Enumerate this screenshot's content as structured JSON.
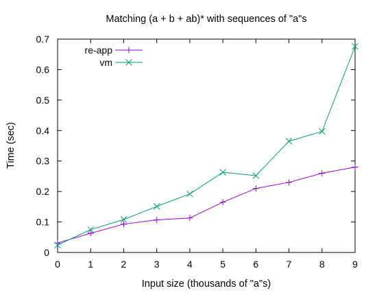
{
  "chart_data": {
    "type": "line",
    "title": "Matching (a + b + ab)* with sequences of \"a\"s",
    "xlabel": "Input size (thousands of \"a\"s)",
    "ylabel": "Time (sec)",
    "xlim": [
      0,
      9
    ],
    "ylim": [
      0,
      0.7
    ],
    "x_ticks": [
      "0",
      "1",
      "2",
      "3",
      "4",
      "5",
      "6",
      "7",
      "8",
      "9"
    ],
    "y_ticks": [
      "0",
      "0.1",
      "0.2",
      "0.3",
      "0.4",
      "0.5",
      "0.6",
      "0.7"
    ],
    "x": [
      0,
      1,
      2,
      3,
      4,
      5,
      6,
      7,
      8,
      9
    ],
    "grid": false,
    "legend_position": "top-left",
    "series": [
      {
        "name": "re-app",
        "color": "#9400d3",
        "marker": "plus",
        "values": [
          0.031,
          0.063,
          0.093,
          0.107,
          0.113,
          0.165,
          0.21,
          0.23,
          0.26,
          0.28
        ]
      },
      {
        "name": "vm",
        "color": "#009e73",
        "marker": "cross",
        "values": [
          0.024,
          0.075,
          0.108,
          0.151,
          0.192,
          0.263,
          0.252,
          0.365,
          0.397,
          0.676
        ]
      }
    ]
  }
}
